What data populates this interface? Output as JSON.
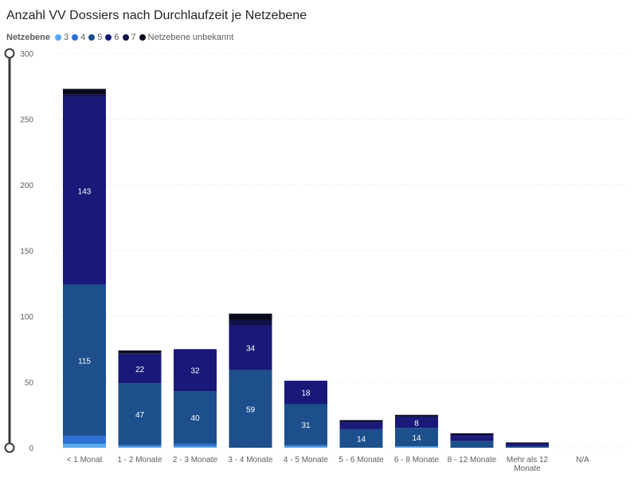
{
  "title": "Anzahl VV Dossiers nach Durchlaufzeit je Netzebene",
  "legend": {
    "title": "Netzebene",
    "items": [
      {
        "label": "3",
        "color": "#5aa9f0"
      },
      {
        "label": "4",
        "color": "#2f6fd0"
      },
      {
        "label": "5",
        "color": "#1c4f8c"
      },
      {
        "label": "6",
        "color": "#19197a"
      },
      {
        "label": "7",
        "color": "#10104a"
      },
      {
        "label": "Netzebene unbekannt",
        "color": "#0a0a1e"
      }
    ]
  },
  "chart_data": {
    "type": "bar",
    "stacked": true,
    "title": "Anzahl VV Dossiers nach Durchlaufzeit je Netzebene",
    "xlabel": "",
    "ylabel": "",
    "ylim": [
      0,
      300
    ],
    "yticks": [
      0,
      50,
      100,
      150,
      200,
      250,
      300
    ],
    "grid": true,
    "legend_position": "top-left",
    "categories": [
      "< 1 Monat",
      "1 - 2 Monate",
      "2 - 3 Monate",
      "3 - 4 Monate",
      "4 - 5 Monate",
      "5 - 6 Monate",
      "6 - 8 Monate",
      "8 - 12 Monate",
      "Mehr als 12 Monate",
      "N/A"
    ],
    "series": [
      {
        "name": "3",
        "color": "#5aa9f0",
        "values": [
          3,
          1,
          1,
          0,
          1,
          0,
          1,
          0,
          0,
          0
        ]
      },
      {
        "name": "4",
        "color": "#2f6fd0",
        "values": [
          6,
          1,
          2,
          0,
          1,
          0,
          0,
          0,
          0,
          0
        ]
      },
      {
        "name": "5",
        "color": "#1c4f8c",
        "values": [
          115,
          47,
          40,
          59,
          31,
          14,
          14,
          5,
          1,
          0
        ]
      },
      {
        "name": "6",
        "color": "#19197a",
        "values": [
          143,
          22,
          32,
          34,
          18,
          5,
          8,
          4,
          2,
          0
        ]
      },
      {
        "name": "7",
        "color": "#10104a",
        "values": [
          2,
          1,
          0,
          4,
          0,
          1,
          1,
          1,
          0,
          0
        ]
      },
      {
        "name": "Netzebene unbekannt",
        "color": "#0a0a1e",
        "values": [
          4,
          2,
          0,
          5,
          0,
          1,
          1,
          1,
          1,
          0
        ]
      }
    ],
    "data_labels": [
      {
        "category_index": 0,
        "series_index": 2,
        "text": "115"
      },
      {
        "category_index": 0,
        "series_index": 3,
        "text": "143"
      },
      {
        "category_index": 1,
        "series_index": 2,
        "text": "47"
      },
      {
        "category_index": 1,
        "series_index": 3,
        "text": "22"
      },
      {
        "category_index": 2,
        "series_index": 2,
        "text": "40"
      },
      {
        "category_index": 2,
        "series_index": 3,
        "text": "32"
      },
      {
        "category_index": 3,
        "series_index": 2,
        "text": "59"
      },
      {
        "category_index": 3,
        "series_index": 3,
        "text": "34"
      },
      {
        "category_index": 4,
        "series_index": 2,
        "text": "31"
      },
      {
        "category_index": 4,
        "series_index": 3,
        "text": "18"
      },
      {
        "category_index": 5,
        "series_index": 2,
        "text": "14"
      },
      {
        "category_index": 6,
        "series_index": 2,
        "text": "14"
      },
      {
        "category_index": 6,
        "series_index": 3,
        "text": "8"
      }
    ]
  }
}
